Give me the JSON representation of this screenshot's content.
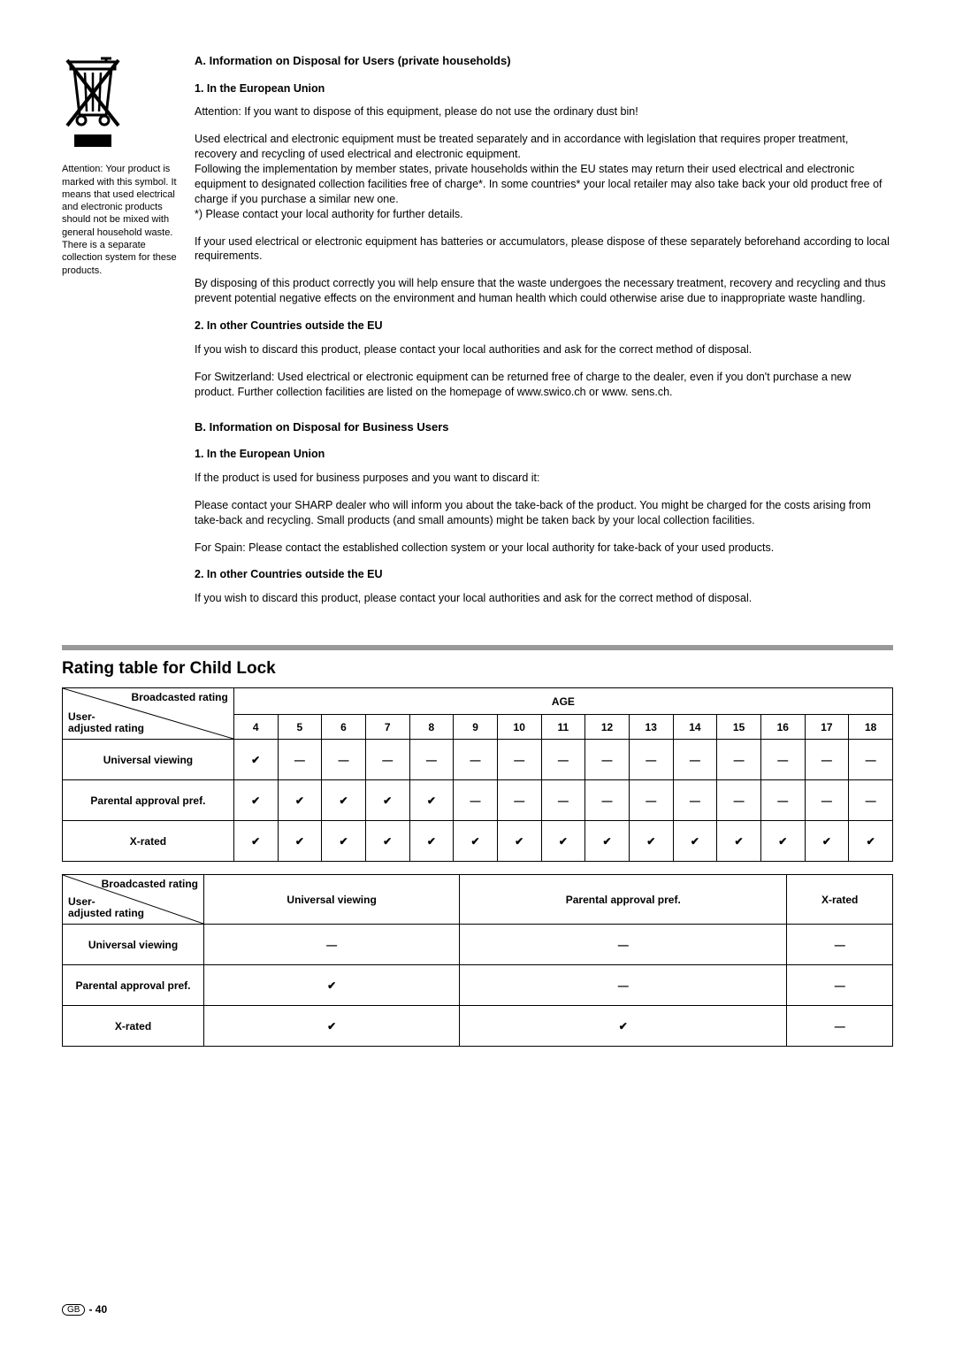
{
  "sidebar": {
    "caption": "Attention: Your product is marked with this symbol. It means that used electrical and electronic products should not be mixed with general household waste. There is a separate collection system for these products."
  },
  "sectionA": {
    "title": "A. Information on Disposal for Users (private households)",
    "sub1": "1. In the European Union",
    "p1": "Attention: If you want to dispose of this equipment, please do not use the ordinary dust bin!",
    "p2": "Used electrical and electronic equipment must be treated separately and in accordance with legislation that requires proper treatment, recovery and recycling of used electrical and electronic equipment.",
    "p3": "Following the implementation by member states, private households within the EU states may return their used electrical and electronic equipment to designated collection facilities free of charge*.  In some countries* your local retailer may also take back your old product free of charge if you purchase a similar new one.",
    "p4": "*) Please contact your local authority for further details.",
    "p5": "If your used electrical or electronic equipment has batteries or accumulators, please dispose of these separately beforehand according to local requirements.",
    "p6": "By disposing of this product correctly you will help ensure that the waste undergoes the necessary treatment, recovery and recycling and thus prevent potential negative effects on the environment and human health which could otherwise arise due to inappropriate waste handling.",
    "sub2": "2. In other Countries outside the EU",
    "p7": "If you wish to discard this product, please contact your local authorities and ask for the correct method of disposal.",
    "p8": "For Switzerland: Used electrical or electronic equipment can be returned free of charge to the dealer, even if you don't purchase a new product. Further collection facilities are listed on the homepage of www.swico.ch or www. sens.ch."
  },
  "sectionB": {
    "title": "B. Information on Disposal for Business Users",
    "sub1": "1. In the European Union",
    "p1": "If the product is used for business purposes and you want to discard it:",
    "p2": "Please contact your SHARP dealer who will inform you about the take-back of the product. You might be charged for the costs arising from take-back and recycling. Small products (and small amounts) might be taken back by your local collection facilities.",
    "p3": "For Spain: Please contact the established collection system or your local authority for take-back of your used products.",
    "sub2": "2. In other Countries outside the EU",
    "p4": "If you wish to discard this product, please contact your local authorities and ask for the correct method of disposal."
  },
  "ratingTable": {
    "title": "Rating table for Child Lock",
    "diagTop": "Broadcasted rating",
    "diagBottom": "User-\nadjusted rating",
    "diagBottomL1": "User-",
    "diagBottomL2": "adjusted rating",
    "ageLabel": "AGE",
    "ages": [
      "4",
      "5",
      "6",
      "7",
      "8",
      "9",
      "10",
      "11",
      "12",
      "13",
      "14",
      "15",
      "16",
      "17",
      "18"
    ],
    "rows": [
      {
        "label": "Universal viewing",
        "cells": [
          "✔",
          "—",
          "—",
          "—",
          "—",
          "—",
          "—",
          "—",
          "—",
          "—",
          "—",
          "—",
          "—",
          "—",
          "—"
        ]
      },
      {
        "label": "Parental approval pref.",
        "cells": [
          "✔",
          "✔",
          "✔",
          "✔",
          "✔",
          "—",
          "—",
          "—",
          "—",
          "—",
          "—",
          "—",
          "—",
          "—",
          "—"
        ]
      },
      {
        "label": "X-rated",
        "cells": [
          "✔",
          "✔",
          "✔",
          "✔",
          "✔",
          "✔",
          "✔",
          "✔",
          "✔",
          "✔",
          "✔",
          "✔",
          "✔",
          "✔",
          "✔"
        ]
      }
    ]
  },
  "ratingTable2": {
    "categories": [
      "Universal viewing",
      "Parental approval pref.",
      "X-rated"
    ],
    "rows": [
      {
        "label": "Universal viewing",
        "cells": [
          "—",
          "—",
          "—"
        ]
      },
      {
        "label": "Parental approval pref.",
        "cells": [
          "✔",
          "—",
          "—"
        ]
      },
      {
        "label": "X-rated",
        "cells": [
          "✔",
          "✔",
          "—"
        ]
      }
    ]
  },
  "footer": {
    "country": "GB",
    "page": "- 40"
  }
}
